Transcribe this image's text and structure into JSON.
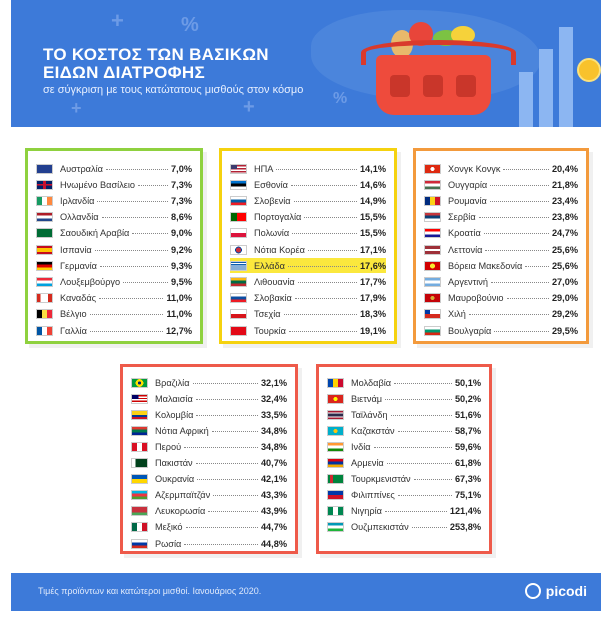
{
  "header": {
    "title_line1": "ΤΟ ΚΟΣΤΟΣ ΤΩΝ ΒΑΣΙΚΩΝ",
    "title_line2": "ΕΙΔΩΝ ΔΙΑΤΡΟΦΗΣ",
    "subtitle": "σε σύγκριση με τους κατώτατους μισθούς στον κόσμο"
  },
  "footer": {
    "note": "Τιμές προϊόντων και κατώτεροι μισθοί. Ιανουάριος 2020.",
    "brand": "picodi"
  },
  "colors": {
    "header_bg": "#3d7ad9",
    "green": "#8fd13f",
    "yellow": "#f5d20f",
    "orange": "#f39a3c",
    "red": "#ee5a4a",
    "highlight": "#fbe83d"
  },
  "chart_data": {
    "type": "table",
    "title": "ΤΟ ΚΟΣΤΟΣ ΤΩΝ ΒΑΣΙΚΩΝ ΕΙΔΩΝ ΔΙΑΤΡΟΦΗΣ",
    "subtitle": "σε σύγκριση με τους κατώτατους μισθούς στον κόσμο",
    "highlighted": "Ελλάδα",
    "groups": [
      {
        "color": "green",
        "rows": [
          {
            "country": "Αυστραλία",
            "value": "7,0%",
            "flag": "australia"
          },
          {
            "country": "Ηνωμένο Βασίλειο",
            "value": "7,3%",
            "flag": "uk"
          },
          {
            "country": "Ιρλανδία",
            "value": "7,3%",
            "flag": "ireland"
          },
          {
            "country": "Ολλανδία",
            "value": "8,6%",
            "flag": "netherlands"
          },
          {
            "country": "Σαουδική Αραβία",
            "value": "9,0%",
            "flag": "saudi-arabia"
          },
          {
            "country": "Ισπανία",
            "value": "9,2%",
            "flag": "spain"
          },
          {
            "country": "Γερμανία",
            "value": "9,3%",
            "flag": "germany"
          },
          {
            "country": "Λουξεμβούργο",
            "value": "9,5%",
            "flag": "luxembourg"
          },
          {
            "country": "Καναδάς",
            "value": "11,0%",
            "flag": "canada"
          },
          {
            "country": "Βέλγιο",
            "value": "11,0%",
            "flag": "belgium"
          },
          {
            "country": "Γαλλία",
            "value": "12,7%",
            "flag": "france"
          }
        ]
      },
      {
        "color": "yellow",
        "rows": [
          {
            "country": "ΗΠΑ",
            "value": "14,1%",
            "flag": "usa"
          },
          {
            "country": "Εσθονία",
            "value": "14,6%",
            "flag": "estonia"
          },
          {
            "country": "Σλοβενία",
            "value": "14,9%",
            "flag": "slovenia"
          },
          {
            "country": "Πορτογαλία",
            "value": "15,5%",
            "flag": "portugal"
          },
          {
            "country": "Πολωνία",
            "value": "15,5%",
            "flag": "poland"
          },
          {
            "country": "Νότια Κορέα",
            "value": "17,1%",
            "flag": "south-korea"
          },
          {
            "country": "Ελλάδα",
            "value": "17,6%",
            "flag": "greece"
          },
          {
            "country": "Λιθουανία",
            "value": "17,7%",
            "flag": "lithuania"
          },
          {
            "country": "Σλοβακία",
            "value": "17,9%",
            "flag": "slovakia"
          },
          {
            "country": "Τσεχία",
            "value": "18,3%",
            "flag": "czechia"
          },
          {
            "country": "Τουρκία",
            "value": "19,1%",
            "flag": "turkey"
          }
        ]
      },
      {
        "color": "orange",
        "rows": [
          {
            "country": "Χονγκ Κονγκ",
            "value": "20,4%",
            "flag": "hong-kong"
          },
          {
            "country": "Ουγγαρία",
            "value": "21,8%",
            "flag": "hungary"
          },
          {
            "country": "Ρουμανία",
            "value": "23,4%",
            "flag": "romania"
          },
          {
            "country": "Σερβία",
            "value": "23,8%",
            "flag": "serbia"
          },
          {
            "country": "Κροατία",
            "value": "24,7%",
            "flag": "croatia"
          },
          {
            "country": "Λεττονία",
            "value": "25,6%",
            "flag": "latvia"
          },
          {
            "country": "Βόρεια Μακεδονία",
            "value": "25,6%",
            "flag": "north-macedonia"
          },
          {
            "country": "Αργεντινή",
            "value": "27,0%",
            "flag": "argentina"
          },
          {
            "country": "Μαυροβούνιο",
            "value": "29,0%",
            "flag": "montenegro"
          },
          {
            "country": "Χιλή",
            "value": "29,2%",
            "flag": "chile"
          },
          {
            "country": "Βουλγαρία",
            "value": "29,5%",
            "flag": "bulgaria"
          }
        ]
      },
      {
        "color": "red",
        "rows": [
          {
            "country": "Βραζιλία",
            "value": "32,1%",
            "flag": "brazil"
          },
          {
            "country": "Μαλαισία",
            "value": "32,4%",
            "flag": "malaysia"
          },
          {
            "country": "Κολομβία",
            "value": "33,5%",
            "flag": "colombia"
          },
          {
            "country": "Νότια Αφρική",
            "value": "34,8%",
            "flag": "south-africa"
          },
          {
            "country": "Περού",
            "value": "34,8%",
            "flag": "peru"
          },
          {
            "country": "Πακιστάν",
            "value": "40,7%",
            "flag": "pakistan"
          },
          {
            "country": "Ουκρανία",
            "value": "42,1%",
            "flag": "ukraine"
          },
          {
            "country": "Αζερμπαϊτζάν",
            "value": "43,3%",
            "flag": "azerbaijan"
          },
          {
            "country": "Λευκορωσία",
            "value": "43,9%",
            "flag": "belarus"
          },
          {
            "country": "Μεξικό",
            "value": "44,7%",
            "flag": "mexico"
          },
          {
            "country": "Ρωσία",
            "value": "44,8%",
            "flag": "russia"
          }
        ]
      },
      {
        "color": "red",
        "rows": [
          {
            "country": "Μολδαβία",
            "value": "50,1%",
            "flag": "moldova"
          },
          {
            "country": "Βιετνάμ",
            "value": "50,2%",
            "flag": "vietnam"
          },
          {
            "country": "Ταϊλάνδη",
            "value": "51,6%",
            "flag": "thailand"
          },
          {
            "country": "Καζακστάν",
            "value": "58,7%",
            "flag": "kazakhstan"
          },
          {
            "country": "Ινδία",
            "value": "59,6%",
            "flag": "india"
          },
          {
            "country": "Αρμενία",
            "value": "61,8%",
            "flag": "armenia"
          },
          {
            "country": "Τουρκμενιστάν",
            "value": "67,3%",
            "flag": "turkmenistan"
          },
          {
            "country": "Φιλιππίνες",
            "value": "75,1%",
            "flag": "philippines"
          },
          {
            "country": "Νιγηρία",
            "value": "121,4%",
            "flag": "nigeria"
          },
          {
            "country": "Ουζμπεκιστάν",
            "value": "253,8%",
            "flag": "uzbekistan"
          }
        ]
      }
    ]
  }
}
